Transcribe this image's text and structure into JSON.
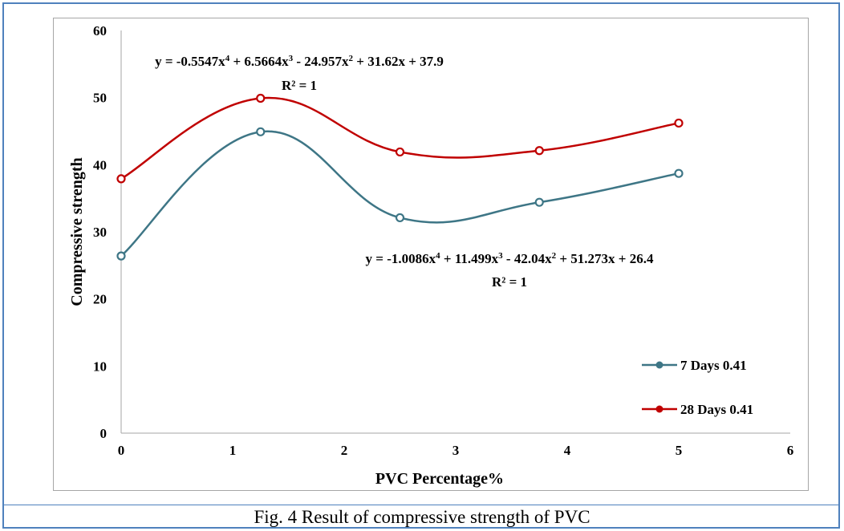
{
  "chart_data": {
    "type": "line",
    "xlabel": "PVC Percentage%",
    "ylabel": "Compressive strength",
    "xlim": [
      0,
      6
    ],
    "ylim": [
      0,
      60
    ],
    "xticks": [
      "0",
      "1",
      "2",
      "3",
      "4",
      "5",
      "6"
    ],
    "yticks": [
      "0",
      "10",
      "20",
      "30",
      "40",
      "50",
      "60"
    ],
    "grid": false,
    "legend_position": "right",
    "series": [
      {
        "name": "7 Days 0.41",
        "color": "#3e7686",
        "x": [
          0,
          1.25,
          2.5,
          3.75,
          5
        ],
        "y": [
          26.4,
          44.9,
          32.1,
          34.4,
          38.7
        ]
      },
      {
        "name": "28 Days 0.41",
        "color": "#c00000",
        "x": [
          0,
          1.25,
          2.5,
          3.75,
          5
        ],
        "y": [
          37.9,
          49.9,
          41.9,
          42.1,
          46.2
        ]
      }
    ],
    "annotations": [
      {
        "eq_parts": [
          "y = -0.5547x",
          "4",
          " + 6.5664x",
          "3",
          " - 24.957x",
          "2",
          " + 31.62x + 37.9"
        ],
        "r2": "R² = 1"
      },
      {
        "eq_parts": [
          "y = -1.0086x",
          "4",
          " + 11.499x",
          "3",
          " - 42.04x",
          "2",
          " + 51.273x + 26.4"
        ],
        "r2": "R² = 1"
      }
    ]
  },
  "caption": "Fig. 4 Result of compressive strength of PVC"
}
